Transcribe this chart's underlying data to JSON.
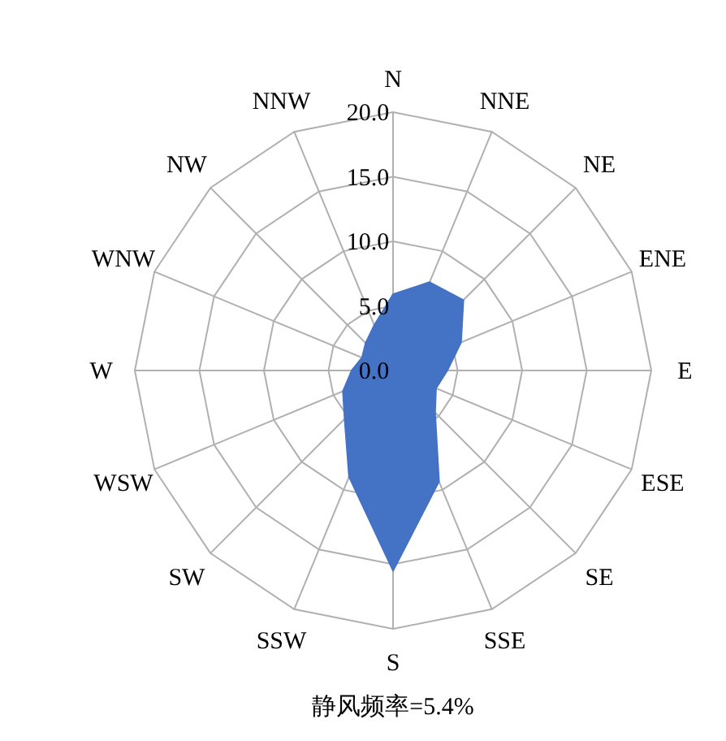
{
  "chart_data": {
    "type": "radar",
    "categories": [
      "N",
      "NNE",
      "NE",
      "ENE",
      "E",
      "ESE",
      "SE",
      "SSE",
      "S",
      "SSW",
      "SW",
      "WSW",
      "W",
      "WNW",
      "NW",
      "NNW"
    ],
    "series": [
      {
        "color": "#4472c4",
        "values": [
          5.9,
          7.4,
          7.7,
          5.7,
          4.2,
          3.6,
          4.6,
          9.3,
          15.5,
          8.9,
          5.3,
          4.2,
          3.2,
          2.6,
          3.0,
          3.8
        ]
      }
    ],
    "ylim": [
      0,
      20
    ],
    "yticks": [
      {
        "value": 0,
        "label": "0.0"
      },
      {
        "value": 5,
        "label": "5.0"
      },
      {
        "value": 10,
        "label": "10.0"
      },
      {
        "value": 15,
        "label": "15.0"
      },
      {
        "value": 20,
        "label": "20.0"
      }
    ],
    "grid": true,
    "annotations": [
      "静风频率=5.4%"
    ]
  }
}
